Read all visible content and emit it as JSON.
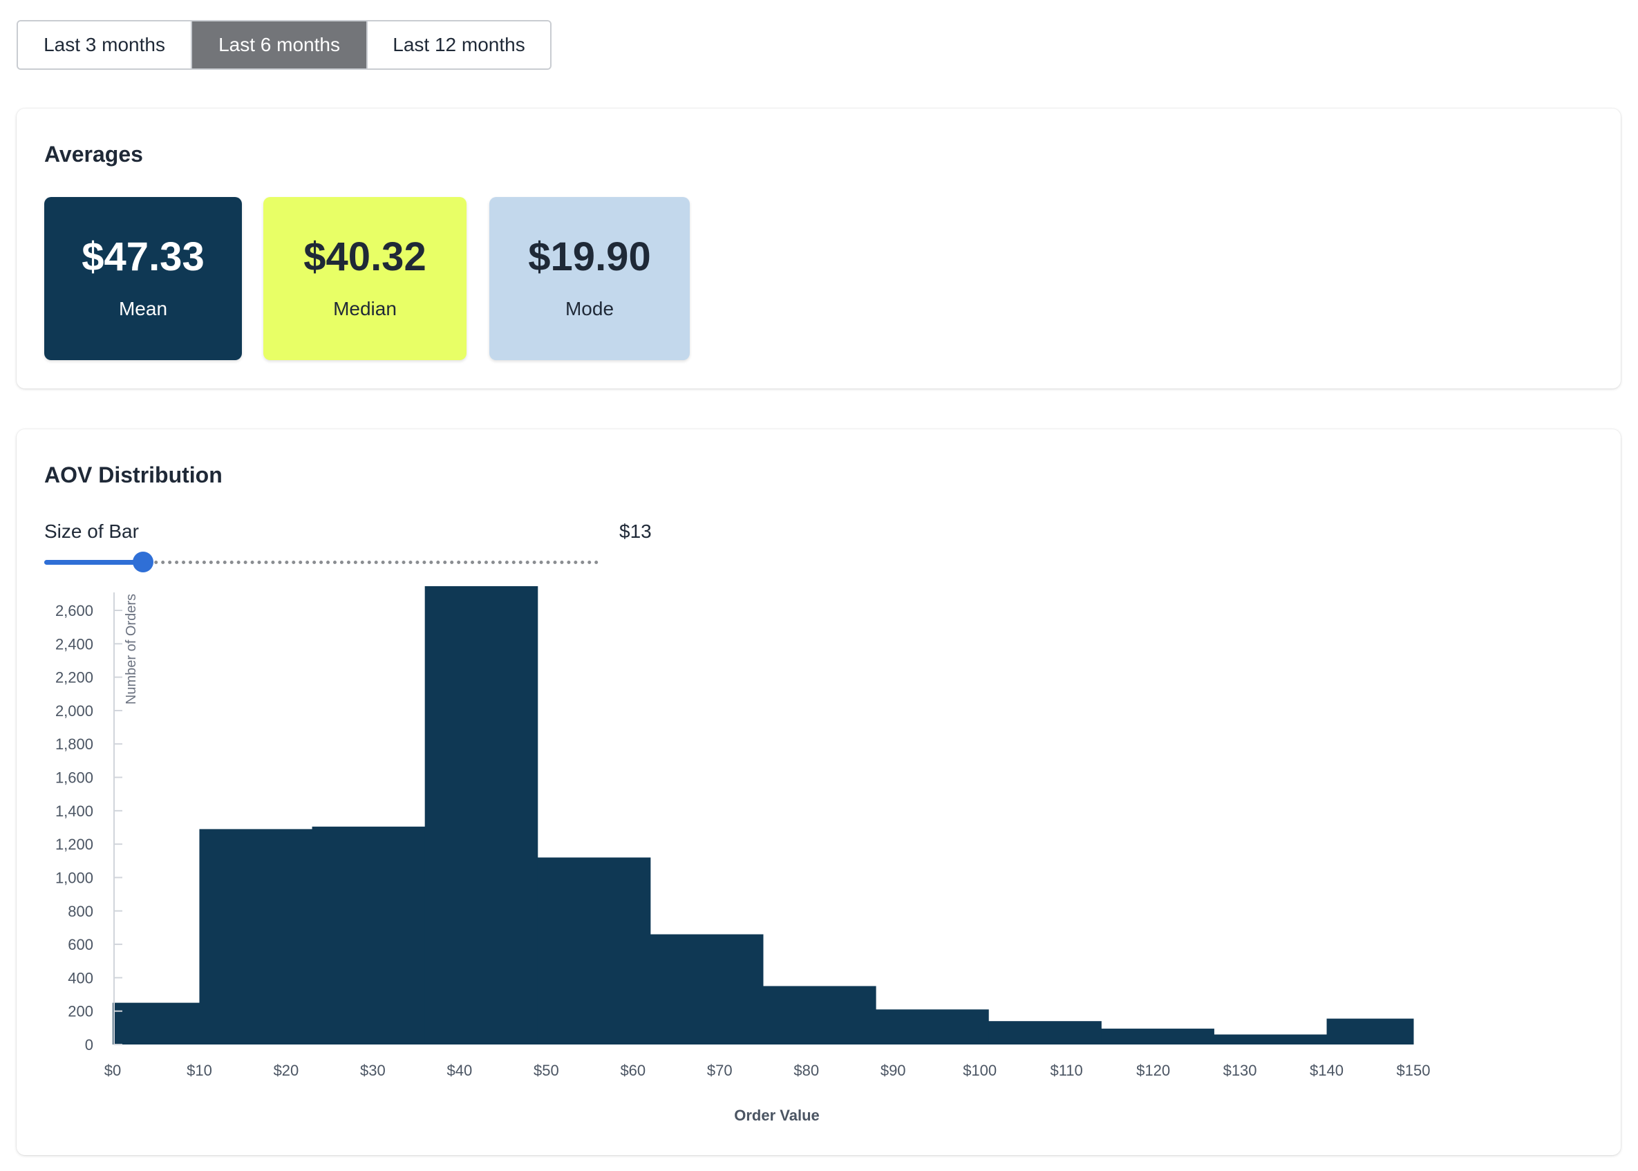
{
  "range_selector": {
    "options": [
      "Last 3 months",
      "Last 6 months",
      "Last 12 months"
    ],
    "selected": "Last 6 months"
  },
  "averages": {
    "title": "Averages",
    "mean": {
      "value": "$47.33",
      "label": "Mean"
    },
    "median": {
      "value": "$40.32",
      "label": "Median"
    },
    "mode": {
      "value": "$19.90",
      "label": "Mode"
    }
  },
  "colors": {
    "mean_bg": "#0f3854",
    "median_bg": "#e8ff66",
    "mode_bg": "#c3d8ec",
    "bar": "#0f3854",
    "accent": "#2f6fd6",
    "selected_range": "#737579"
  },
  "distribution": {
    "title": "AOV Distribution",
    "slider": {
      "label": "Size of Bar",
      "value_text": "$13",
      "value": 13,
      "min": 5,
      "max": 50
    }
  },
  "chart_data": {
    "type": "bar",
    "xlabel": "Order Value",
    "ylabel": "Number of Orders",
    "xlim": [
      0,
      150
    ],
    "ylim": [
      0,
      2750
    ],
    "x_ticks": [
      0,
      10,
      20,
      30,
      40,
      50,
      60,
      70,
      80,
      90,
      100,
      110,
      120,
      130,
      140,
      150
    ],
    "x_tick_labels": [
      "$0",
      "$10",
      "$20",
      "$30",
      "$40",
      "$50",
      "$60",
      "$70",
      "$80",
      "$90",
      "$100",
      "$110",
      "$120",
      "$130",
      "$140",
      "$150"
    ],
    "y_ticks": [
      0,
      200,
      400,
      600,
      800,
      1000,
      1200,
      1400,
      1600,
      1800,
      2000,
      2200,
      2400,
      2600
    ],
    "y_tick_labels": [
      "0",
      "200",
      "400",
      "600",
      "800",
      "1,000",
      "1,200",
      "1,400",
      "1,600",
      "1,800",
      "2,000",
      "2,200",
      "2,400",
      "2,600"
    ],
    "bins": [
      {
        "x0": 0,
        "x1": 10,
        "value": 250
      },
      {
        "x0": 10,
        "x1": 23,
        "value": 1290
      },
      {
        "x0": 23,
        "x1": 36,
        "value": 1305
      },
      {
        "x0": 36,
        "x1": 49,
        "value": 2745
      },
      {
        "x0": 49,
        "x1": 62,
        "value": 1120
      },
      {
        "x0": 62,
        "x1": 75,
        "value": 660
      },
      {
        "x0": 75,
        "x1": 88,
        "value": 350
      },
      {
        "x0": 88,
        "x1": 101,
        "value": 210
      },
      {
        "x0": 101,
        "x1": 114,
        "value": 140
      },
      {
        "x0": 114,
        "x1": 127,
        "value": 95
      },
      {
        "x0": 127,
        "x1": 140,
        "value": 60
      },
      {
        "x0": 140,
        "x1": 150,
        "value": 155
      }
    ],
    "grid": false
  }
}
